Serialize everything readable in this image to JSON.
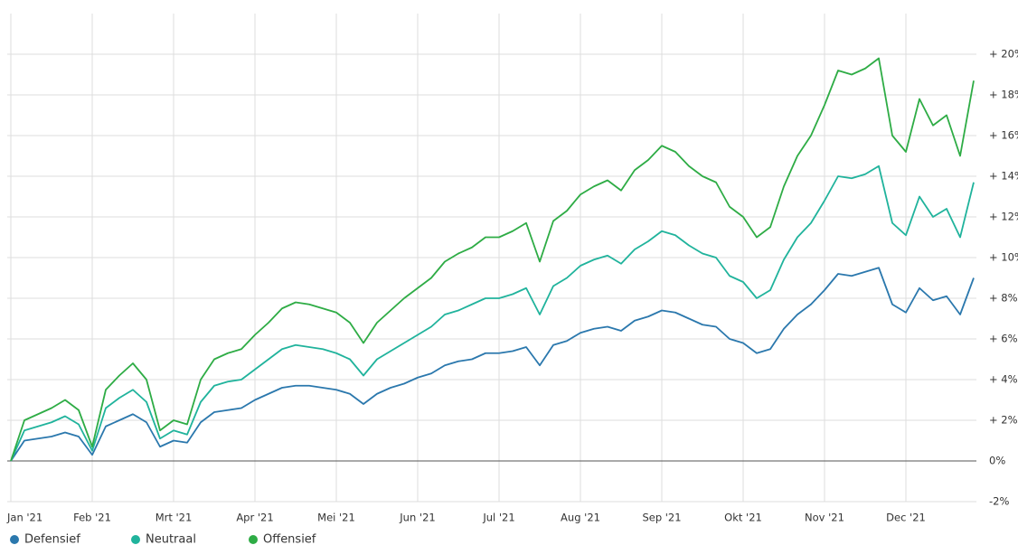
{
  "chart_data": {
    "type": "line",
    "categories": [
      "Jan '21",
      null,
      null,
      null,
      null,
      null,
      "Feb '21",
      null,
      null,
      null,
      null,
      null,
      "Mrt '21",
      null,
      null,
      null,
      null,
      null,
      "Apr '21",
      null,
      null,
      null,
      null,
      null,
      "Mei '21",
      null,
      null,
      null,
      null,
      null,
      "Jun '21",
      null,
      null,
      null,
      null,
      null,
      "Jul '21",
      null,
      null,
      null,
      null,
      null,
      "Aug '21",
      null,
      null,
      null,
      null,
      null,
      "Sep '21",
      null,
      null,
      null,
      null,
      null,
      "Okt '21",
      null,
      null,
      null,
      null,
      null,
      "Nov '21",
      null,
      null,
      null,
      null,
      null,
      "Dec '21",
      null,
      null,
      null,
      null,
      null
    ],
    "series": [
      {
        "name": "Defensief",
        "color": "#2b78ad",
        "values": [
          0,
          1.0,
          1.1,
          1.2,
          1.4,
          1.2,
          0.3,
          1.7,
          2.0,
          2.3,
          1.9,
          0.7,
          1.0,
          0.9,
          1.9,
          2.4,
          2.5,
          2.6,
          3.0,
          3.3,
          3.6,
          3.7,
          3.7,
          3.6,
          3.5,
          3.3,
          2.8,
          3.3,
          3.6,
          3.8,
          4.1,
          4.3,
          4.7,
          4.9,
          5.0,
          5.3,
          5.3,
          5.4,
          5.6,
          4.7,
          5.7,
          5.9,
          6.3,
          6.5,
          6.6,
          6.4,
          6.9,
          7.1,
          7.4,
          7.3,
          7.0,
          6.7,
          6.6,
          6.0,
          5.8,
          5.3,
          5.5,
          6.5,
          7.2,
          7.7,
          8.4,
          9.2,
          9.1,
          9.3,
          9.5,
          7.7,
          7.3,
          8.5,
          7.9,
          8.1,
          7.2,
          9.0
        ]
      },
      {
        "name": "Neutraal",
        "color": "#20b39c",
        "values": [
          0,
          1.5,
          1.7,
          1.9,
          2.2,
          1.8,
          0.5,
          2.6,
          3.1,
          3.5,
          2.9,
          1.1,
          1.5,
          1.3,
          2.9,
          3.7,
          3.9,
          4.0,
          4.5,
          5.0,
          5.5,
          5.7,
          5.6,
          5.5,
          5.3,
          5.0,
          4.2,
          5.0,
          5.4,
          5.8,
          6.2,
          6.6,
          7.2,
          7.4,
          7.7,
          8.0,
          8.0,
          8.2,
          8.5,
          7.2,
          8.6,
          9.0,
          9.6,
          9.9,
          10.1,
          9.7,
          10.4,
          10.8,
          11.3,
          11.1,
          10.6,
          10.2,
          10.0,
          9.1,
          8.8,
          8.0,
          8.4,
          9.9,
          11.0,
          11.7,
          12.8,
          14.0,
          13.9,
          14.1,
          14.5,
          11.7,
          11.1,
          13.0,
          12.0,
          12.4,
          11.0,
          13.7
        ]
      },
      {
        "name": "Offensief",
        "color": "#2eac45",
        "values": [
          0,
          2.0,
          2.3,
          2.6,
          3.0,
          2.5,
          0.7,
          3.5,
          4.2,
          4.8,
          4.0,
          1.5,
          2.0,
          1.8,
          4.0,
          5.0,
          5.3,
          5.5,
          6.2,
          6.8,
          7.5,
          7.8,
          7.7,
          7.5,
          7.3,
          6.8,
          5.8,
          6.8,
          7.4,
          8.0,
          8.5,
          9.0,
          9.8,
          10.2,
          10.5,
          11.0,
          11.0,
          11.3,
          11.7,
          9.8,
          11.8,
          12.3,
          13.1,
          13.5,
          13.8,
          13.3,
          14.3,
          14.8,
          15.5,
          15.2,
          14.5,
          14.0,
          13.7,
          12.5,
          12.0,
          11.0,
          11.5,
          13.5,
          15.0,
          16.0,
          17.5,
          19.2,
          19.0,
          19.3,
          19.8,
          16.0,
          15.2,
          17.8,
          16.5,
          17.0,
          15.0,
          18.7
        ]
      }
    ],
    "ylim": [
      -2,
      22
    ],
    "yticks": [
      {
        "value": -2,
        "label": "-2%"
      },
      {
        "value": 0,
        "label": "0%"
      },
      {
        "value": 2,
        "label": "+ 2%"
      },
      {
        "value": 4,
        "label": "+ 4%"
      },
      {
        "value": 6,
        "label": "+ 6%"
      },
      {
        "value": 8,
        "label": "+ 8%"
      },
      {
        "value": 10,
        "label": "+ 10%"
      },
      {
        "value": 12,
        "label": "+ 12%"
      },
      {
        "value": 14,
        "label": "+ 14%"
      },
      {
        "value": 16,
        "label": "+ 16%"
      },
      {
        "value": 18,
        "label": "+ 18%"
      },
      {
        "value": 20,
        "label": "+ 20%"
      }
    ],
    "grid": true
  }
}
